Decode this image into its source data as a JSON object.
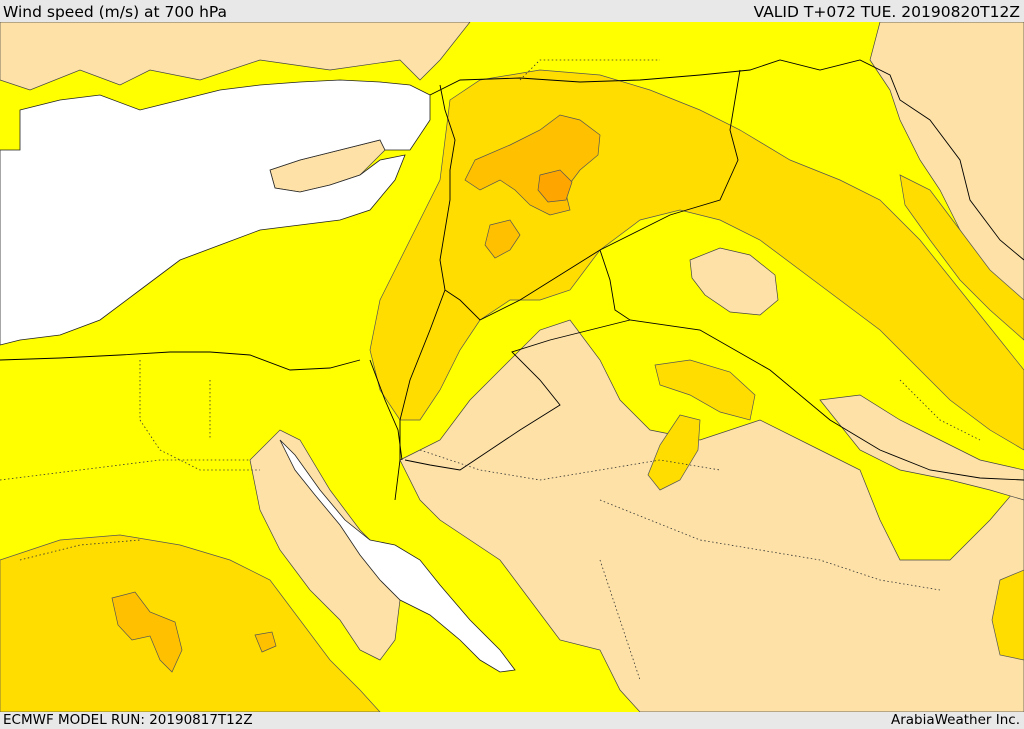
{
  "header": {
    "title": "Wind speed (m/s) at 700 hPa",
    "valid": "VALID T+072 TUE. 20190820T12Z"
  },
  "footer": {
    "run": "ECMWF MODEL RUN: 20190817T12Z",
    "brand": "ArabiaWeather Inc."
  },
  "colors": {
    "sea": "#ffffff",
    "calm": "#fde1a7",
    "light": "#ffff00",
    "moderate": "#ffdd00",
    "strong": "#ffc000",
    "very_strong": "#ffa500",
    "contour": "#333333",
    "border": "#000000"
  }
}
